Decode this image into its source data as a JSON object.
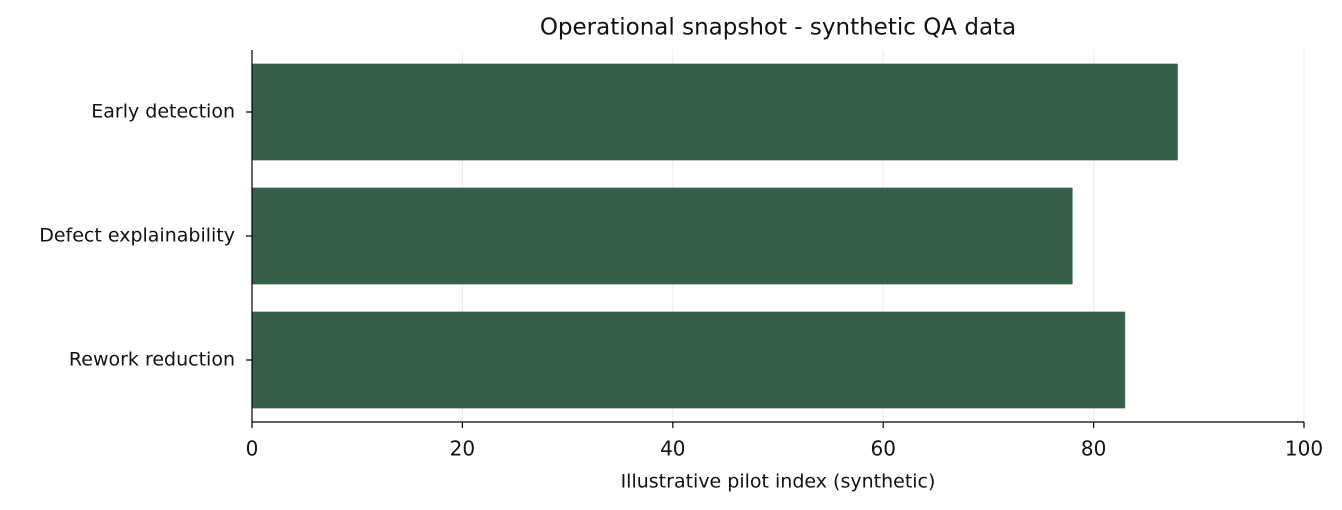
{
  "chart_data": {
    "type": "bar",
    "orientation": "horizontal",
    "title": "Operational snapshot - synthetic QA data",
    "xlabel": "Illustrative pilot index (synthetic)",
    "categories": [
      "Early detection",
      "Defect explainability",
      "Rework reduction"
    ],
    "values": [
      88,
      78,
      83
    ],
    "color": "#365e48",
    "xlim": [
      0,
      100
    ],
    "xticks": [
      0,
      20,
      40,
      60,
      80,
      100
    ],
    "grid": true
  }
}
